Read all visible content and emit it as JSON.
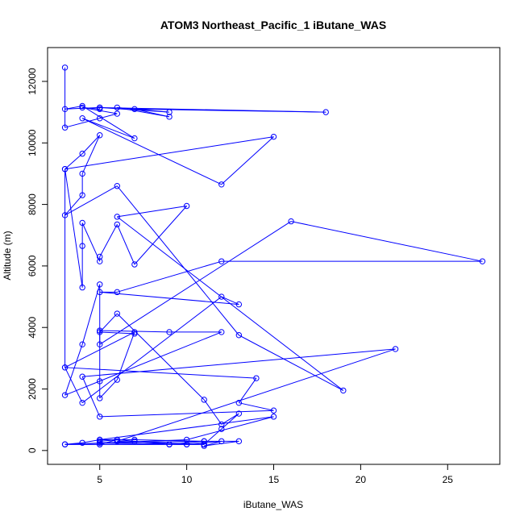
{
  "chart_data": {
    "type": "line",
    "title": "ATOM3 Northeast_Pacific_1 iButane_WAS",
    "xlabel": "iButane_WAS",
    "ylabel": "Altitude (m)",
    "xlim": [
      2.0,
      28.0
    ],
    "ylim": [
      -450,
      13100
    ],
    "xticks": [
      5,
      10,
      15,
      20,
      25
    ],
    "yticks": [
      0,
      2000,
      4000,
      6000,
      8000,
      10000,
      12000
    ],
    "grid": false,
    "legend": "none",
    "series": [
      {
        "color": "#0000ff",
        "marker": "open-circle",
        "x": [
          3,
          3,
          5,
          6,
          4,
          5,
          5,
          18,
          7,
          9,
          6,
          9,
          5,
          3,
          4,
          7,
          4,
          12,
          15,
          3,
          4,
          5,
          4,
          4,
          3,
          6,
          13,
          19,
          6,
          10,
          7,
          6,
          5,
          5,
          4,
          4,
          4,
          3,
          3,
          4,
          12,
          13,
          5,
          6,
          12,
          27,
          16,
          5,
          5,
          9,
          12,
          3,
          4,
          5,
          5,
          5,
          6,
          7,
          3,
          14,
          13,
          15,
          5,
          4,
          22,
          6,
          11,
          9,
          11,
          13,
          11,
          12,
          10,
          5,
          11,
          7,
          5,
          15,
          10,
          3,
          5,
          9,
          3,
          4,
          5,
          6,
          5,
          5,
          6,
          7,
          9,
          10,
          11,
          12,
          13,
          12,
          11,
          6,
          5,
          7
        ],
        "y": [
          12450,
          10500,
          10800,
          10950,
          11150,
          11100,
          11150,
          11000,
          11100,
          10850,
          11150,
          11000,
          11150,
          11100,
          11200,
          10150,
          10800,
          8650,
          10200,
          9150,
          9650,
          10250,
          9000,
          8300,
          7650,
          8600,
          3750,
          1950,
          7600,
          7950,
          6050,
          7350,
          6300,
          6150,
          7400,
          6650,
          5300,
          9150,
          2700,
          1550,
          5000,
          4750,
          5150,
          5150,
          6150,
          6150,
          7450,
          3450,
          3900,
          3850,
          3850,
          1800,
          3450,
          5400,
          2250,
          1700,
          2300,
          3850,
          2700,
          2350,
          1550,
          1300,
          1100,
          2400,
          3300,
          300,
          200,
          200,
          300,
          300,
          150,
          300,
          200,
          250,
          300,
          350,
          350,
          1100,
          350,
          200,
          200,
          200,
          200,
          250,
          350,
          350,
          200,
          300,
          350,
          300,
          200,
          200,
          200,
          700,
          1200,
          850,
          1650,
          4450,
          3850,
          3800
        ]
      }
    ]
  }
}
